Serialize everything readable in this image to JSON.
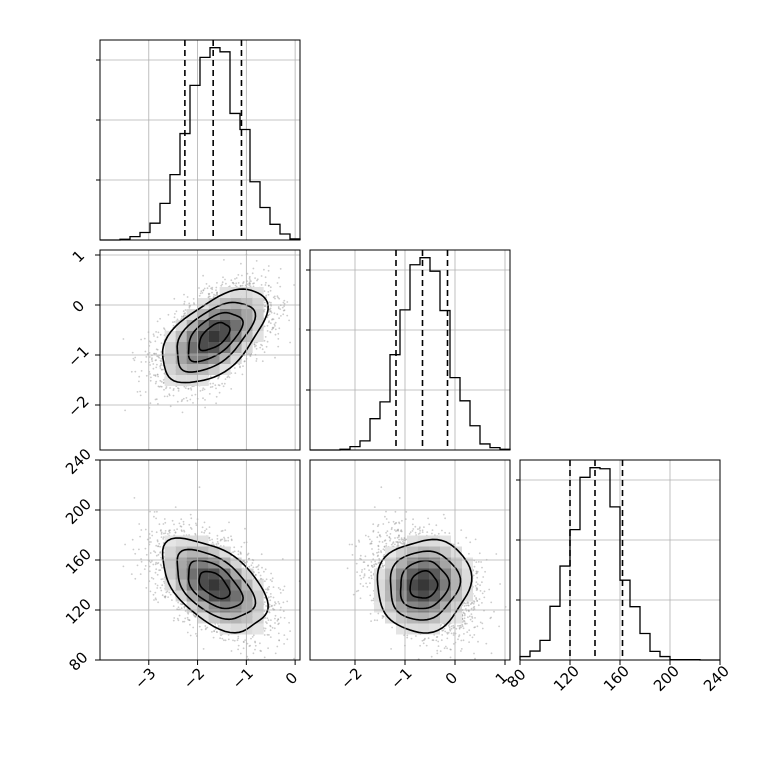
{
  "chart_data": {
    "type": "corner",
    "parameters": [
      {
        "range": [
          -4.0,
          0.1
        ],
        "ticks": [
          -3,
          -2,
          -1,
          0
        ],
        "tick_labels": [
          "−3",
          "−2",
          "−1",
          "0"
        ],
        "quantiles": [
          -2.26,
          -1.68,
          -1.1
        ],
        "mean": -1.66,
        "sd": 0.55
      },
      {
        "range": [
          -2.9,
          1.1
        ],
        "ticks": [
          -2,
          -1,
          0,
          1
        ],
        "tick_labels": [
          "−2",
          "−1",
          "0",
          "1"
        ],
        "quantiles": [
          -1.18,
          -0.65,
          -0.15
        ],
        "mean": -0.63,
        "sd": 0.48
      },
      {
        "range": [
          80,
          240
        ],
        "ticks": [
          80,
          120,
          160,
          200,
          240
        ],
        "tick_labels": [
          "80",
          "120",
          "160",
          "200",
          "240"
        ],
        "quantiles": [
          120,
          140,
          162
        ],
        "mean": 140,
        "sd": 19
      }
    ],
    "correlations": {
      "1_0": 0.55,
      "2_0": -0.5,
      "2_1": 0.08
    },
    "histogram_bins": 20,
    "grid": true,
    "quantile_line_style": "dashed",
    "colors": {
      "line": "#000000",
      "scatter": "#9a9a9a",
      "grid": "#b0b0b0"
    }
  }
}
